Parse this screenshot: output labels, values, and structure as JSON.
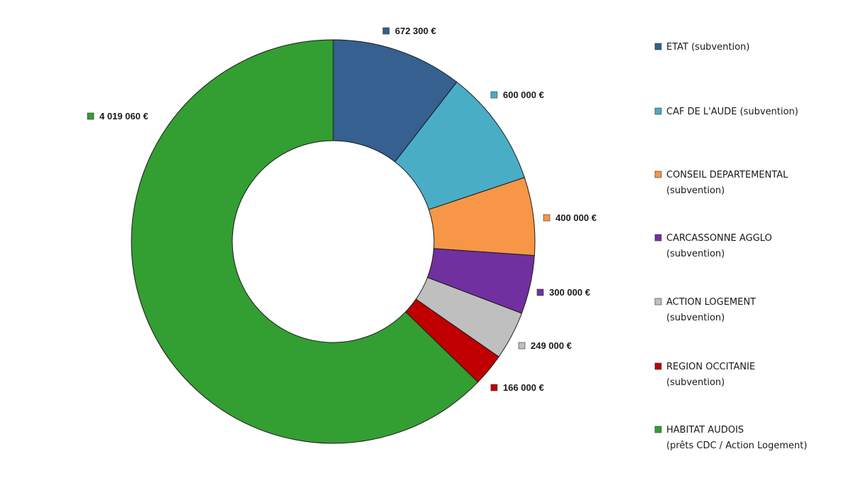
{
  "chart_data": {
    "type": "pie",
    "donut": true,
    "unit": "€",
    "slices": [
      {
        "label_lines": [
          "ETAT (subvention)"
        ],
        "value": 672300,
        "value_label": "672 300 €",
        "color": "#35608f"
      },
      {
        "label_lines": [
          "CAF DE L'AUDE (subvention)"
        ],
        "value": 600000,
        "value_label": "600 000 €",
        "color": "#4aadc6"
      },
      {
        "label_lines": [
          "CONSEIL DEPARTEMENTAL",
          "(subvention)"
        ],
        "value": 400000,
        "value_label": "400 000 €",
        "color": "#f79646"
      },
      {
        "label_lines": [
          "CARCASSONNE AGGLO",
          "(subvention)"
        ],
        "value": 300000,
        "value_label": "300 000 €",
        "color": "#7030a0"
      },
      {
        "label_lines": [
          "ACTION LOGEMENT",
          "(subvention)"
        ],
        "value": 249000,
        "value_label": "249 000 €",
        "color": "#bfbfbf"
      },
      {
        "label_lines": [
          "REGION OCCITANIE",
          "(subvention)"
        ],
        "value": 166000,
        "value_label": "166 000 €",
        "color": "#c00000"
      },
      {
        "label_lines": [
          "HABITAT AUDOIS",
          "(prêts CDC / Action Logement)"
        ],
        "value": 4019060,
        "value_label": "4 019 060 €",
        "color": "#339e32"
      }
    ],
    "legend_position": "right"
  }
}
